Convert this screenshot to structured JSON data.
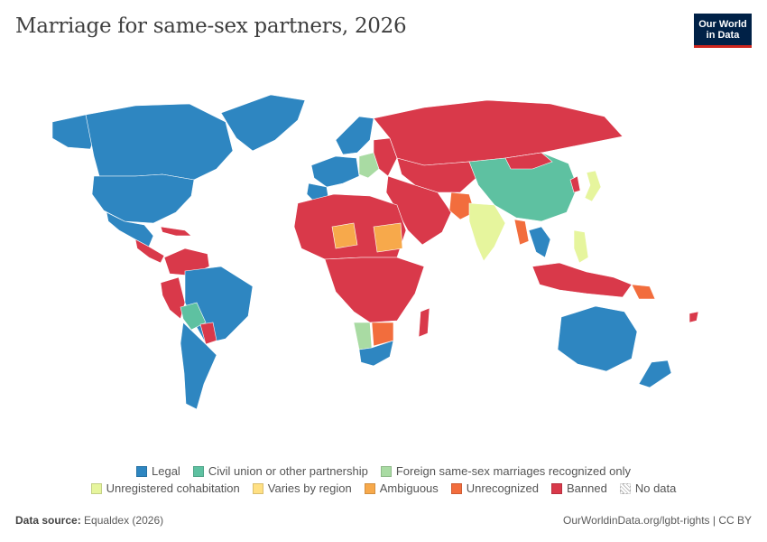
{
  "title": "Marriage for same-sex partners, 2026",
  "logo": {
    "line1": "Our World",
    "line2": "in Data"
  },
  "legend": [
    {
      "label": "Legal",
      "color": "#2e86c1"
    },
    {
      "label": "Civil union or other partnership",
      "color": "#5ec1a1"
    },
    {
      "label": "Foreign same-sex marriages recognized only",
      "color": "#a9dba3"
    },
    {
      "label": "Unregistered cohabitation",
      "color": "#e6f59d"
    },
    {
      "label": "Varies by region",
      "color": "#ffe083"
    },
    {
      "label": "Ambiguous",
      "color": "#f7a94b"
    },
    {
      "label": "Unrecognized",
      "color": "#f26d3d"
    },
    {
      "label": "Banned",
      "color": "#d9394a"
    },
    {
      "label": "No data",
      "color": "#ffffff"
    }
  ],
  "footer": {
    "source_label": "Data source:",
    "source_value": "Equaldex (2026)",
    "url_text": "OurWorldinData.org/lgbt-rights | CC BY"
  }
}
